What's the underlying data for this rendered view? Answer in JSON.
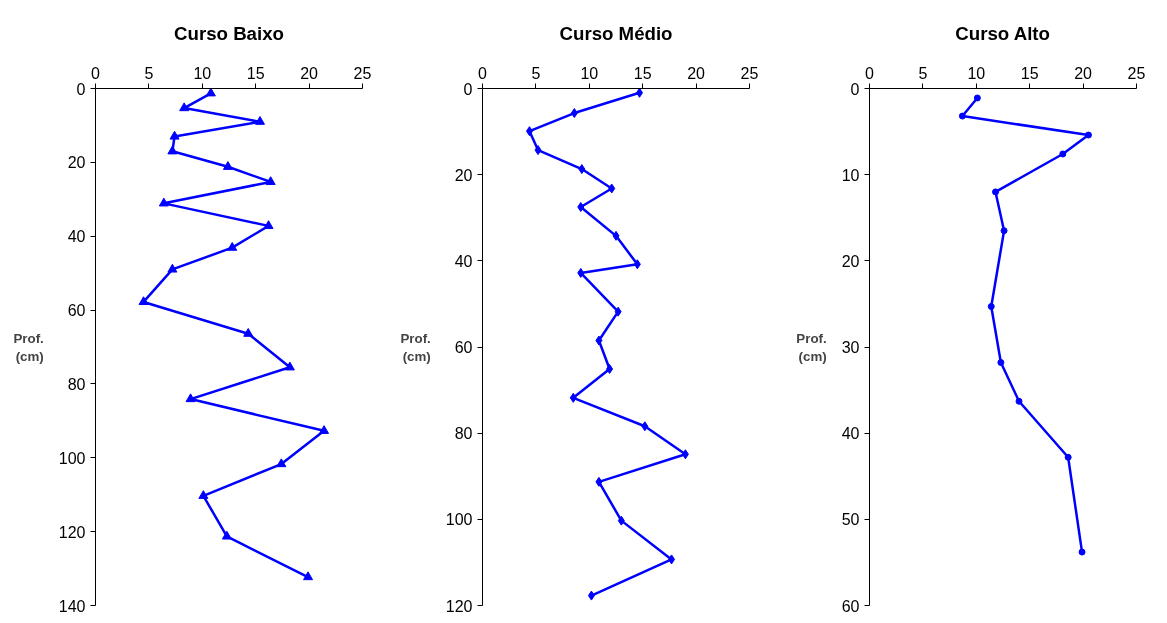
{
  "chart_data": [
    {
      "type": "line",
      "title": "Curso Baixo",
      "ylabel": "Prof.\n(cm)",
      "marker": "triangle",
      "grid": false,
      "xlim": [
        0,
        25
      ],
      "xticks": [
        0,
        5,
        10,
        15,
        20,
        25
      ],
      "ylim": [
        140,
        0
      ],
      "yticks": [
        0,
        20,
        40,
        60,
        80,
        100,
        120,
        140
      ],
      "series": [
        {
          "color": "#0000ff",
          "x": [
            10.8,
            8.3,
            15.4,
            7.4,
            7.2,
            12.4,
            16.4,
            6.4,
            16.2,
            12.8,
            7.2,
            4.5,
            14.3,
            18.2,
            8.9,
            21.4,
            17.4,
            10.1,
            12.3,
            19.9
          ],
          "values": [
            1.3,
            5.3,
            9.0,
            13.0,
            17.0,
            21.2,
            25.3,
            31.1,
            37.2,
            43.1,
            49.0,
            57.8,
            66.4,
            75.5,
            84.1,
            92.7,
            101.7,
            110.3,
            121.3,
            132.3
          ]
        }
      ]
    },
    {
      "type": "line",
      "title": "Curso Médio",
      "ylabel": "Prof.\n(cm)",
      "marker": "diamond",
      "grid": false,
      "xlim": [
        0,
        25
      ],
      "xticks": [
        0,
        5,
        10,
        15,
        20,
        25
      ],
      "ylim": [
        120,
        0
      ],
      "yticks": [
        0,
        20,
        40,
        60,
        80,
        100,
        120
      ],
      "series": [
        {
          "color": "#0000ff",
          "x": [
            14.7,
            8.6,
            4.4,
            5.2,
            9.3,
            12.1,
            9.2,
            12.5,
            14.5,
            9.2,
            12.7,
            10.9,
            11.9,
            8.5,
            15.2,
            19.0,
            10.9,
            13.0,
            17.7,
            10.2
          ],
          "values": [
            1.0,
            5.7,
            9.9,
            14.3,
            18.7,
            23.2,
            27.5,
            34.2,
            40.8,
            42.8,
            51.8,
            58.5,
            65.1,
            71.8,
            78.4,
            84.9,
            91.3,
            100.3,
            109.3,
            117.7
          ]
        }
      ]
    },
    {
      "type": "line",
      "title": "Curso Alto",
      "ylabel": "Prof.\n(cm)",
      "marker": "circle",
      "grid": false,
      "xlim": [
        0,
        25
      ],
      "xticks": [
        0,
        5,
        10,
        15,
        20,
        25
      ],
      "ylim": [
        60,
        0
      ],
      "yticks": [
        0,
        10,
        20,
        30,
        40,
        50,
        60
      ],
      "series": [
        {
          "color": "#0000ff",
          "x": [
            10.1,
            8.7,
            20.5,
            18.1,
            11.8,
            12.6,
            11.4,
            12.3,
            14.0,
            18.6,
            19.9
          ],
          "values": [
            1.1,
            3.2,
            5.4,
            7.6,
            12.0,
            16.5,
            25.3,
            31.8,
            36.3,
            42.8,
            53.8
          ]
        }
      ]
    }
  ]
}
